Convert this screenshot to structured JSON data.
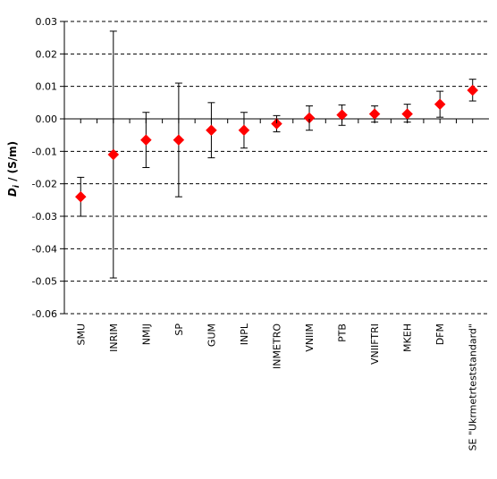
{
  "chart_data": {
    "type": "scatter",
    "title": "",
    "xlabel": "",
    "ylabel": {
      "symbol": "D",
      "subscript": "i",
      "rest": " / (S/m)"
    },
    "ylim": [
      -0.06,
      0.03
    ],
    "yticks": [
      0.03,
      0.02,
      0.01,
      0.0,
      -0.01,
      -0.02,
      -0.03,
      -0.04,
      -0.05,
      -0.06
    ],
    "ytick_labels": [
      "0.03",
      "0.02",
      "0.01",
      "0.00",
      "-0.01",
      "-0.02",
      "-0.03",
      "-0.04",
      "-0.05",
      "-0.06"
    ],
    "grid": "horizontal dashed",
    "legend": "none",
    "marker": "diamond",
    "marker_color": "#ff0000",
    "error_bar_color": "#000000",
    "categories": [
      "SMU",
      "INRIM",
      "NMIJ",
      "SP",
      "GUM",
      "INPL",
      "INMETRO",
      "VNIIM",
      "PTB",
      "VNIIFTRI",
      "MKEH",
      "DFM",
      "SE \"Ukrmetrteststandard\""
    ],
    "values": [
      -0.024,
      -0.011,
      -0.0065,
      -0.0065,
      -0.0035,
      -0.0035,
      -0.0015,
      0.0003,
      0.0012,
      0.0015,
      0.0015,
      0.0045,
      0.0088
    ],
    "error_low": [
      -0.03,
      -0.049,
      -0.015,
      -0.024,
      -0.012,
      -0.009,
      -0.004,
      -0.0035,
      -0.002,
      -0.001,
      -0.001,
      0.0005,
      0.0055
    ],
    "error_high": [
      -0.018,
      0.027,
      0.002,
      0.011,
      0.005,
      0.002,
      0.001,
      0.004,
      0.0043,
      0.004,
      0.0045,
      0.0085,
      0.0122
    ]
  }
}
